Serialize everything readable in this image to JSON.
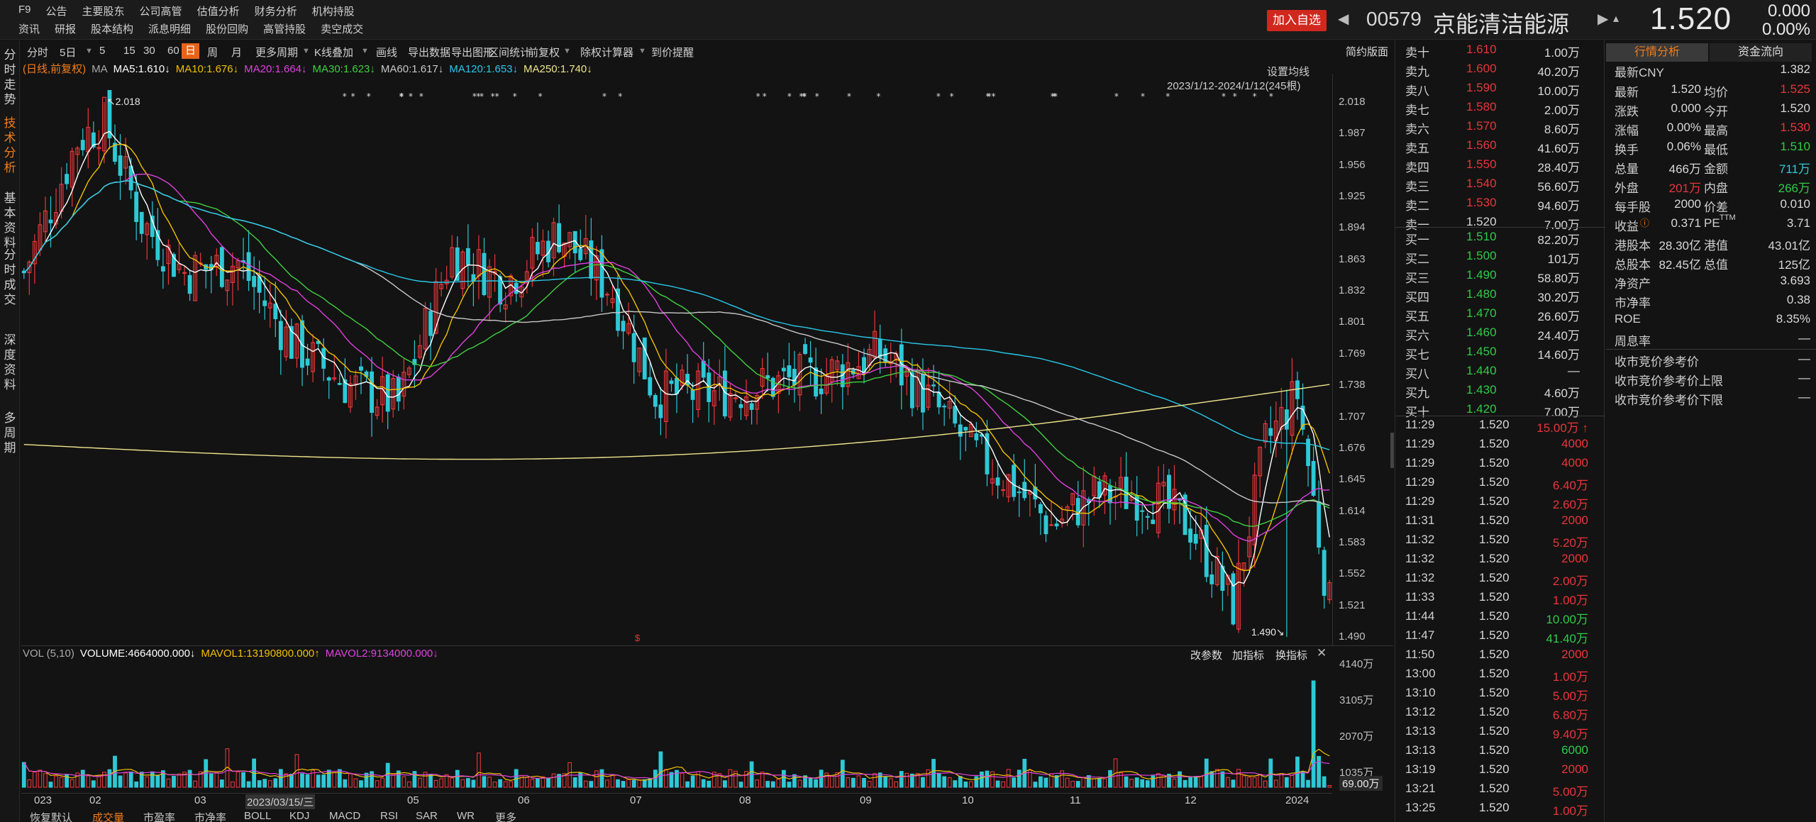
{
  "topbar": {
    "menu_row1": [
      "F9",
      "公告",
      "主要股东",
      "公司高管",
      "估值分析",
      "财务分析",
      "机构持股"
    ],
    "menu_row2": [
      "资讯",
      "研报",
      "股本结构",
      "派息明细",
      "股份回购",
      "高管持股",
      "卖空成交"
    ],
    "add_watch": "加入自选",
    "code": "00579",
    "name": "京能清洁能源",
    "price": "1.520",
    "change": "0.000",
    "change_pct": "0.00%"
  },
  "leftnav": [
    {
      "label": "分时走势",
      "active": false
    },
    {
      "label": "技术分析",
      "active": true
    },
    {
      "label": "基本资料",
      "active": false
    },
    {
      "label": "分时成交",
      "active": false
    },
    {
      "label": "深度资料",
      "active": false
    },
    {
      "label": "多周期",
      "active": false
    }
  ],
  "toolbar": {
    "items": [
      "分时",
      "5日",
      "5",
      "15",
      "30",
      "60",
      "日",
      "周",
      "月",
      "更多周期",
      "K线叠加",
      "画线",
      "导出数据",
      "导出图形",
      "区间统计",
      "前复权",
      "除权计算器",
      "到价提醒"
    ],
    "active": "日",
    "simple_layout": "简约版面",
    "set_ma": "设置均线",
    "date_range": "2023/1/12-2024/1/12(245根)"
  },
  "ma_legend": {
    "mode": "(日线,前复权)",
    "ma": "MA",
    "items": [
      {
        "text": "MA5:1.610↓",
        "color": "#ffffff"
      },
      {
        "text": "MA10:1.676↓",
        "color": "#f0c000"
      },
      {
        "text": "MA20:1.664↓",
        "color": "#e040e0"
      },
      {
        "text": "MA30:1.623↓",
        "color": "#40d040"
      },
      {
        "text": "MA60:1.617↓",
        "color": "#c8c8c8"
      },
      {
        "text": "MA120:1.653↓",
        "color": "#28c8e8"
      },
      {
        "text": "MA250:1.740↓",
        "color": "#f0e68c"
      }
    ]
  },
  "yaxis": {
    "labels": [
      "2.018",
      "1.987",
      "1.956",
      "1.925",
      "1.894",
      "1.863",
      "1.832",
      "1.801",
      "1.769",
      "1.738",
      "1.707",
      "1.676",
      "1.645",
      "1.614",
      "1.583",
      "1.552",
      "1.521",
      "1.490"
    ]
  },
  "price_marks": {
    "high": "2.018",
    "low": "1.490"
  },
  "vol_panel": {
    "label": "VOL (5,10)",
    "volume": "VOLUME:4664000.000↓",
    "mavol1": "MAVOL1:13190800.000↑",
    "mavol2": "MAVOL2:9134000.000↓",
    "buttons": [
      "改参数",
      "加指标",
      "换指标"
    ],
    "y_labels": [
      "4140万",
      "3105万",
      "2070万",
      "1035万"
    ],
    "last": "69.00万"
  },
  "xaxis": {
    "labels": [
      "023",
      "02",
      "03",
      "2023/03/15/三",
      "05",
      "06",
      "07",
      "08",
      "09",
      "10",
      "11",
      "12",
      "2024"
    ]
  },
  "bottom_tabs": {
    "items": [
      "恢复默认",
      "成交量",
      "市盈率",
      "市净率",
      "BOLL",
      "KDJ",
      "MACD",
      "RSI",
      "SAR",
      "WR",
      "更多"
    ],
    "active": "成交量"
  },
  "order_book": {
    "asks": [
      {
        "label": "卖十",
        "price": "1.610",
        "vol": "1.00万"
      },
      {
        "label": "卖九",
        "price": "1.600",
        "vol": "40.20万"
      },
      {
        "label": "卖八",
        "price": "1.590",
        "vol": "10.00万"
      },
      {
        "label": "卖七",
        "price": "1.580",
        "vol": "2.00万"
      },
      {
        "label": "卖六",
        "price": "1.570",
        "vol": "8.60万"
      },
      {
        "label": "卖五",
        "price": "1.560",
        "vol": "41.60万"
      },
      {
        "label": "卖四",
        "price": "1.550",
        "vol": "28.40万"
      },
      {
        "label": "卖三",
        "price": "1.540",
        "vol": "56.60万"
      },
      {
        "label": "卖二",
        "price": "1.530",
        "vol": "94.60万"
      },
      {
        "label": "卖一",
        "price": "1.520",
        "vol": "7.00万"
      }
    ],
    "bids": [
      {
        "label": "买一",
        "price": "1.510",
        "vol": "82.20万"
      },
      {
        "label": "买二",
        "price": "1.500",
        "vol": "101万"
      },
      {
        "label": "买三",
        "price": "1.490",
        "vol": "58.80万"
      },
      {
        "label": "买四",
        "price": "1.480",
        "vol": "30.20万"
      },
      {
        "label": "买五",
        "price": "1.470",
        "vol": "26.60万"
      },
      {
        "label": "买六",
        "price": "1.460",
        "vol": "24.40万"
      },
      {
        "label": "买七",
        "price": "1.450",
        "vol": "14.60万"
      },
      {
        "label": "买八",
        "price": "1.440",
        "vol": "—"
      },
      {
        "label": "买九",
        "price": "1.430",
        "vol": "4.60万"
      },
      {
        "label": "买十",
        "price": "1.420",
        "vol": "7.00万"
      }
    ]
  },
  "trades": [
    {
      "time": "11:29",
      "price": "1.520",
      "vol": "15.00万 ↑",
      "color": "red"
    },
    {
      "time": "11:29",
      "price": "1.520",
      "vol": "4000",
      "color": "red"
    },
    {
      "time": "11:29",
      "price": "1.520",
      "vol": "4000",
      "color": "red"
    },
    {
      "time": "11:29",
      "price": "1.520",
      "vol": "6.40万",
      "color": "red"
    },
    {
      "time": "11:29",
      "price": "1.520",
      "vol": "2.60万",
      "color": "red"
    },
    {
      "time": "11:31",
      "price": "1.520",
      "vol": "2000",
      "color": "red"
    },
    {
      "time": "11:32",
      "price": "1.520",
      "vol": "5.20万",
      "color": "red"
    },
    {
      "time": "11:32",
      "price": "1.520",
      "vol": "2000",
      "color": "red"
    },
    {
      "time": "11:32",
      "price": "1.520",
      "vol": "2.00万",
      "color": "red"
    },
    {
      "time": "11:33",
      "price": "1.520",
      "vol": "1.00万",
      "color": "red"
    },
    {
      "time": "11:44",
      "price": "1.520",
      "vol": "10.00万",
      "color": "green"
    },
    {
      "time": "11:47",
      "price": "1.520",
      "vol": "41.40万",
      "color": "green"
    },
    {
      "time": "11:50",
      "price": "1.520",
      "vol": "2000",
      "color": "red"
    },
    {
      "time": "13:00",
      "price": "1.520",
      "vol": "1.00万",
      "color": "red"
    },
    {
      "time": "13:10",
      "price": "1.520",
      "vol": "5.00万",
      "color": "red"
    },
    {
      "time": "13:12",
      "price": "1.520",
      "vol": "6.80万",
      "color": "red"
    },
    {
      "time": "13:13",
      "price": "1.520",
      "vol": "9.40万",
      "color": "red"
    },
    {
      "time": "13:13",
      "price": "1.520",
      "vol": "6000",
      "color": "green"
    },
    {
      "time": "13:19",
      "price": "1.520",
      "vol": "2000",
      "color": "red"
    },
    {
      "time": "13:21",
      "price": "1.520",
      "vol": "5.00万",
      "color": "red"
    },
    {
      "time": "13:25",
      "price": "1.520",
      "vol": "1.00万",
      "color": "red"
    }
  ],
  "panel": {
    "tabs": [
      "行情分析",
      "资金流向"
    ],
    "latest_cny_label": "最新CNY",
    "latest_cny": "1.382",
    "rows": [
      {
        "l1": "最新",
        "v1": "1.520",
        "c1": "",
        "l2": "均价",
        "v2": "1.525",
        "c2": "red"
      },
      {
        "l1": "涨跌",
        "v1": "0.000",
        "c1": "",
        "l2": "今开",
        "v2": "1.520",
        "c2": ""
      },
      {
        "l1": "涨幅",
        "v1": "0.00%",
        "c1": "",
        "l2": "最高",
        "v2": "1.530",
        "c2": "red"
      },
      {
        "l1": "换手",
        "v1": "0.06%",
        "c1": "",
        "l2": "最低",
        "v2": "1.510",
        "c2": "green"
      },
      {
        "l1": "总量",
        "v1": "466万",
        "c1": "",
        "l2": "金额",
        "v2": "711万",
        "c2": "cyan"
      },
      {
        "l1": "外盘",
        "v1": "201万",
        "c1": "red",
        "l2": "内盘",
        "v2": "266万",
        "c2": "green"
      },
      {
        "l1": "每手股",
        "v1": "2000",
        "c1": "",
        "l2": "价差",
        "v2": "0.010",
        "c2": ""
      },
      {
        "l1": "收益",
        "v1": "0.371",
        "c1": "",
        "l2": "PE",
        "v2": "3.71",
        "c2": ""
      },
      {
        "l1": "港股本",
        "v1": "28.30亿",
        "c1": "",
        "l2": "港值",
        "v2": "43.01亿",
        "c2": ""
      },
      {
        "l1": "总股本",
        "v1": "82.45亿",
        "c1": "",
        "l2": "总值",
        "v2": "125亿",
        "c2": ""
      }
    ],
    "pe_sup": "TTM",
    "single": [
      {
        "l": "净资产",
        "v": "3.693"
      },
      {
        "l": "市净率",
        "v": "0.38"
      },
      {
        "l": "ROE",
        "v": "8.35%"
      },
      {
        "l": "周息率",
        "v": "—"
      }
    ],
    "auction": [
      {
        "l": "收市竞价参考价",
        "v": "—"
      },
      {
        "l": "收市竞价参考价上限",
        "v": "—"
      },
      {
        "l": "收市竞价参考价下限",
        "v": "—"
      }
    ]
  },
  "chart_data": {
    "type": "candlestick",
    "ylim": [
      1.49,
      2.018
    ],
    "count": 245,
    "anchors": [
      [
        0,
        1.85
      ],
      [
        10,
        1.98
      ],
      [
        15,
        2.0
      ],
      [
        22,
        1.9
      ],
      [
        30,
        1.85
      ],
      [
        40,
        1.86
      ],
      [
        50,
        1.78
      ],
      [
        60,
        1.74
      ],
      [
        70,
        1.72
      ],
      [
        80,
        1.87
      ],
      [
        90,
        1.84
      ],
      [
        100,
        1.89
      ],
      [
        110,
        1.83
      ],
      [
        118,
        1.73
      ],
      [
        130,
        1.73
      ],
      [
        140,
        1.74
      ],
      [
        150,
        1.75
      ],
      [
        160,
        1.77
      ],
      [
        170,
        1.72
      ],
      [
        178,
        1.67
      ],
      [
        185,
        1.64
      ],
      [
        192,
        1.6
      ],
      [
        200,
        1.63
      ],
      [
        210,
        1.63
      ],
      [
        218,
        1.6
      ],
      [
        226,
        1.52
      ],
      [
        232,
        1.68
      ],
      [
        238,
        1.73
      ],
      [
        244,
        1.52
      ]
    ],
    "mavol_max": 41400000
  }
}
